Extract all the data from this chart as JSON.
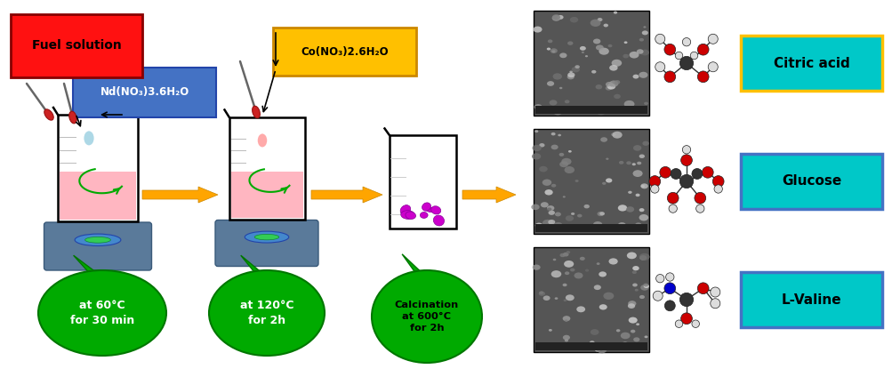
{
  "bg_color": "#ffffff",
  "arrow_color": "#ffa500",
  "hotplate_color": "#5a7a9a",
  "liquid_color": "#ffb6c1",
  "nd_label": "Nd(NO₃)3.6H₂O",
  "co_label": "Co(NO₃)2.6H₂O",
  "fuel_label": "Fuel solution",
  "step1_text": "at 60°C\nfor 30 min",
  "step2_text": "at 120°C\nfor 2h",
  "step3_text": "Calcination\nat 600°C\nfor 2h",
  "label1": "Citric acid",
  "label2": "Glucose",
  "label3": "L-Valine",
  "cyan_color": "#00c8c8",
  "green_bubble": "#00aa00"
}
